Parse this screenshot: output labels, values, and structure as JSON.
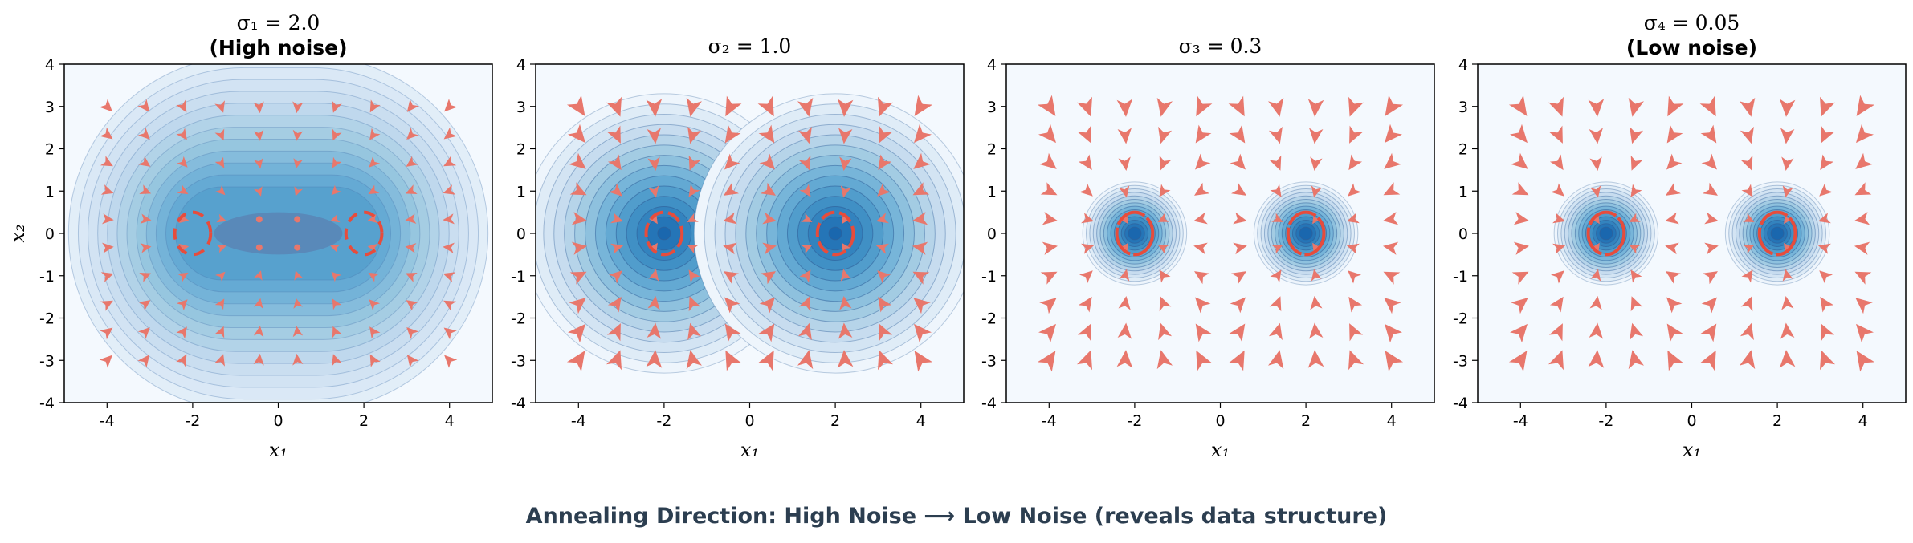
{
  "caption": "Annealing Direction: High Noise ⟶ Low Noise (reveals data structure)",
  "colors": {
    "arrow": "#e8776c",
    "ring": "#e74c3c",
    "caption": "#2c3e50"
  },
  "chart_data": [
    {
      "type": "contour+quiver",
      "title": "σ₁ = 2.0",
      "subtitle": "(High noise)",
      "xlabel": "x₁",
      "ylabel": "x₂",
      "xlim": [
        -5,
        5
      ],
      "ylim": [
        -4,
        4
      ],
      "xticks": [
        -4,
        -2,
        0,
        2,
        4
      ],
      "yticks": [
        -4,
        -3,
        -2,
        -1,
        0,
        1,
        2,
        3,
        4
      ],
      "sigma": 2.0,
      "modes": [
        [
          -2,
          0
        ],
        [
          2,
          0
        ]
      ]
    },
    {
      "type": "contour+quiver",
      "title": "σ₂ = 1.0",
      "subtitle": "",
      "xlabel": "x₁",
      "ylabel": "",
      "xlim": [
        -5,
        5
      ],
      "ylim": [
        -4,
        4
      ],
      "xticks": [
        -4,
        -2,
        0,
        2,
        4
      ],
      "yticks": [
        -4,
        -3,
        -2,
        -1,
        0,
        1,
        2,
        3,
        4
      ],
      "sigma": 1.0,
      "modes": [
        [
          -2,
          0
        ],
        [
          2,
          0
        ]
      ]
    },
    {
      "type": "contour+quiver",
      "title": "σ₃ = 0.3",
      "subtitle": "",
      "xlabel": "x₁",
      "ylabel": "",
      "xlim": [
        -5,
        5
      ],
      "ylim": [
        -4,
        4
      ],
      "xticks": [
        -4,
        -2,
        0,
        2,
        4
      ],
      "yticks": [
        -4,
        -3,
        -2,
        -1,
        0,
        1,
        2,
        3,
        4
      ],
      "sigma": 0.3,
      "modes": [
        [
          -2,
          0
        ],
        [
          2,
          0
        ]
      ]
    },
    {
      "type": "contour+quiver",
      "title": "σ₄ = 0.05",
      "subtitle": "(Low noise)",
      "xlabel": "x₁",
      "ylabel": "",
      "xlim": [
        -5,
        5
      ],
      "ylim": [
        -4,
        4
      ],
      "xticks": [
        -4,
        -2,
        0,
        2,
        4
      ],
      "yticks": [
        -4,
        -3,
        -2,
        -1,
        0,
        1,
        2,
        3,
        4
      ],
      "sigma": 0.05,
      "modes": [
        [
          -2,
          0
        ],
        [
          2,
          0
        ]
      ]
    }
  ]
}
